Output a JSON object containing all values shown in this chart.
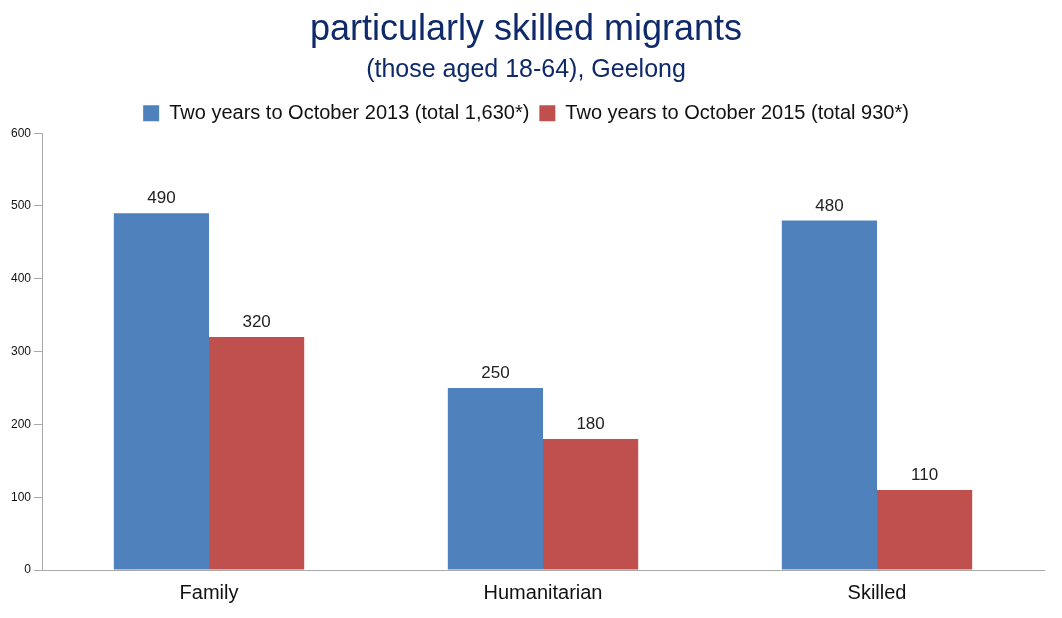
{
  "chart_data": {
    "type": "bar",
    "title": "particularly skilled migrants",
    "subtitle": "(those aged 18-64), Geelong",
    "categories": [
      "Family",
      "Humanitarian",
      "Skilled"
    ],
    "series": [
      {
        "name": "Two years to October 2013 (total 1,630*)",
        "color": "#4f81bd",
        "values": [
          490,
          250,
          480
        ]
      },
      {
        "name": "Two years to October 2015 (total 930*)",
        "color": "#c0504d",
        "values": [
          320,
          180,
          110
        ]
      }
    ],
    "ylim": [
      0,
      600
    ],
    "yticks": [
      0,
      100,
      200,
      300,
      400,
      500,
      600
    ],
    "grid": false,
    "legend": "top",
    "data_labels": true
  }
}
